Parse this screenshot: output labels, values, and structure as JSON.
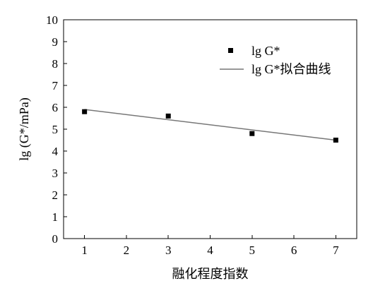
{
  "chart_data": {
    "type": "scatter",
    "title": "",
    "xlabel": "融化程度指数",
    "ylabel": "lg (G*/mPa)",
    "xlim": [
      0.5,
      7.5
    ],
    "ylim": [
      0,
      10
    ],
    "xticks": [
      1,
      2,
      3,
      4,
      5,
      6,
      7
    ],
    "yticks": [
      0,
      1,
      2,
      3,
      4,
      5,
      6,
      7,
      8,
      9,
      10
    ],
    "grid": false,
    "legend_position": "top-right",
    "series": [
      {
        "name": "lg G*",
        "kind": "scatter",
        "marker": "square",
        "color": "#000000",
        "x": [
          1,
          3,
          5,
          7
        ],
        "y": [
          5.8,
          5.6,
          4.8,
          4.5
        ]
      },
      {
        "name": "lg G*拟合曲线",
        "kind": "line",
        "color": "#777777",
        "x": [
          1,
          7
        ],
        "y": [
          5.9,
          4.5
        ]
      }
    ]
  }
}
